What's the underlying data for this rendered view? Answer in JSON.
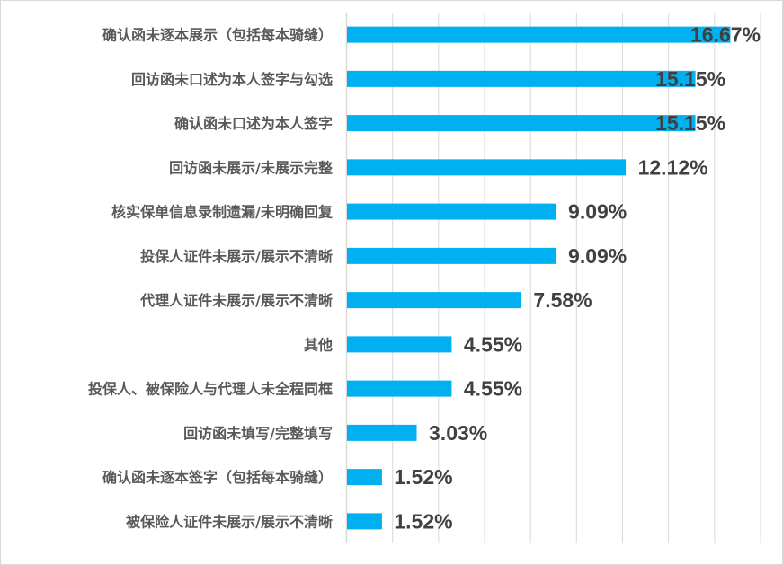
{
  "chart_data": {
    "type": "bar",
    "orientation": "horizontal",
    "title": "",
    "xlabel": "",
    "ylabel": "",
    "xlim": [
      0,
      18
    ],
    "grid_step": 2,
    "grid": true,
    "bar_color": "#00B0F0",
    "categories": [
      "确认函未逐本展示（包括每本骑缝）",
      "回访函未口述为本人签字与勾选",
      "确认函未口述为本人签字",
      "回访函未展示/未展示完整",
      "核实保单信息录制遗漏/未明确回复",
      "投保人证件未展示/展示不清晰",
      "代理人证件未展示/展示不清晰",
      "其他",
      "投保人、被保险人与代理人未全程同框",
      "回访函未填写/完整填写",
      "确认函未逐本签字（包括每本骑缝）",
      "被保险人证件未展示/展示不清晰"
    ],
    "values": [
      16.67,
      15.15,
      15.15,
      12.12,
      9.09,
      9.09,
      7.58,
      4.55,
      4.55,
      3.03,
      1.52,
      1.52
    ],
    "value_labels": [
      "16.67%",
      "15.15%",
      "15.15%",
      "12.12%",
      "9.09%",
      "9.09%",
      "7.58%",
      "4.55%",
      "4.55%",
      "3.03%",
      "1.52%",
      "1.52%"
    ]
  }
}
